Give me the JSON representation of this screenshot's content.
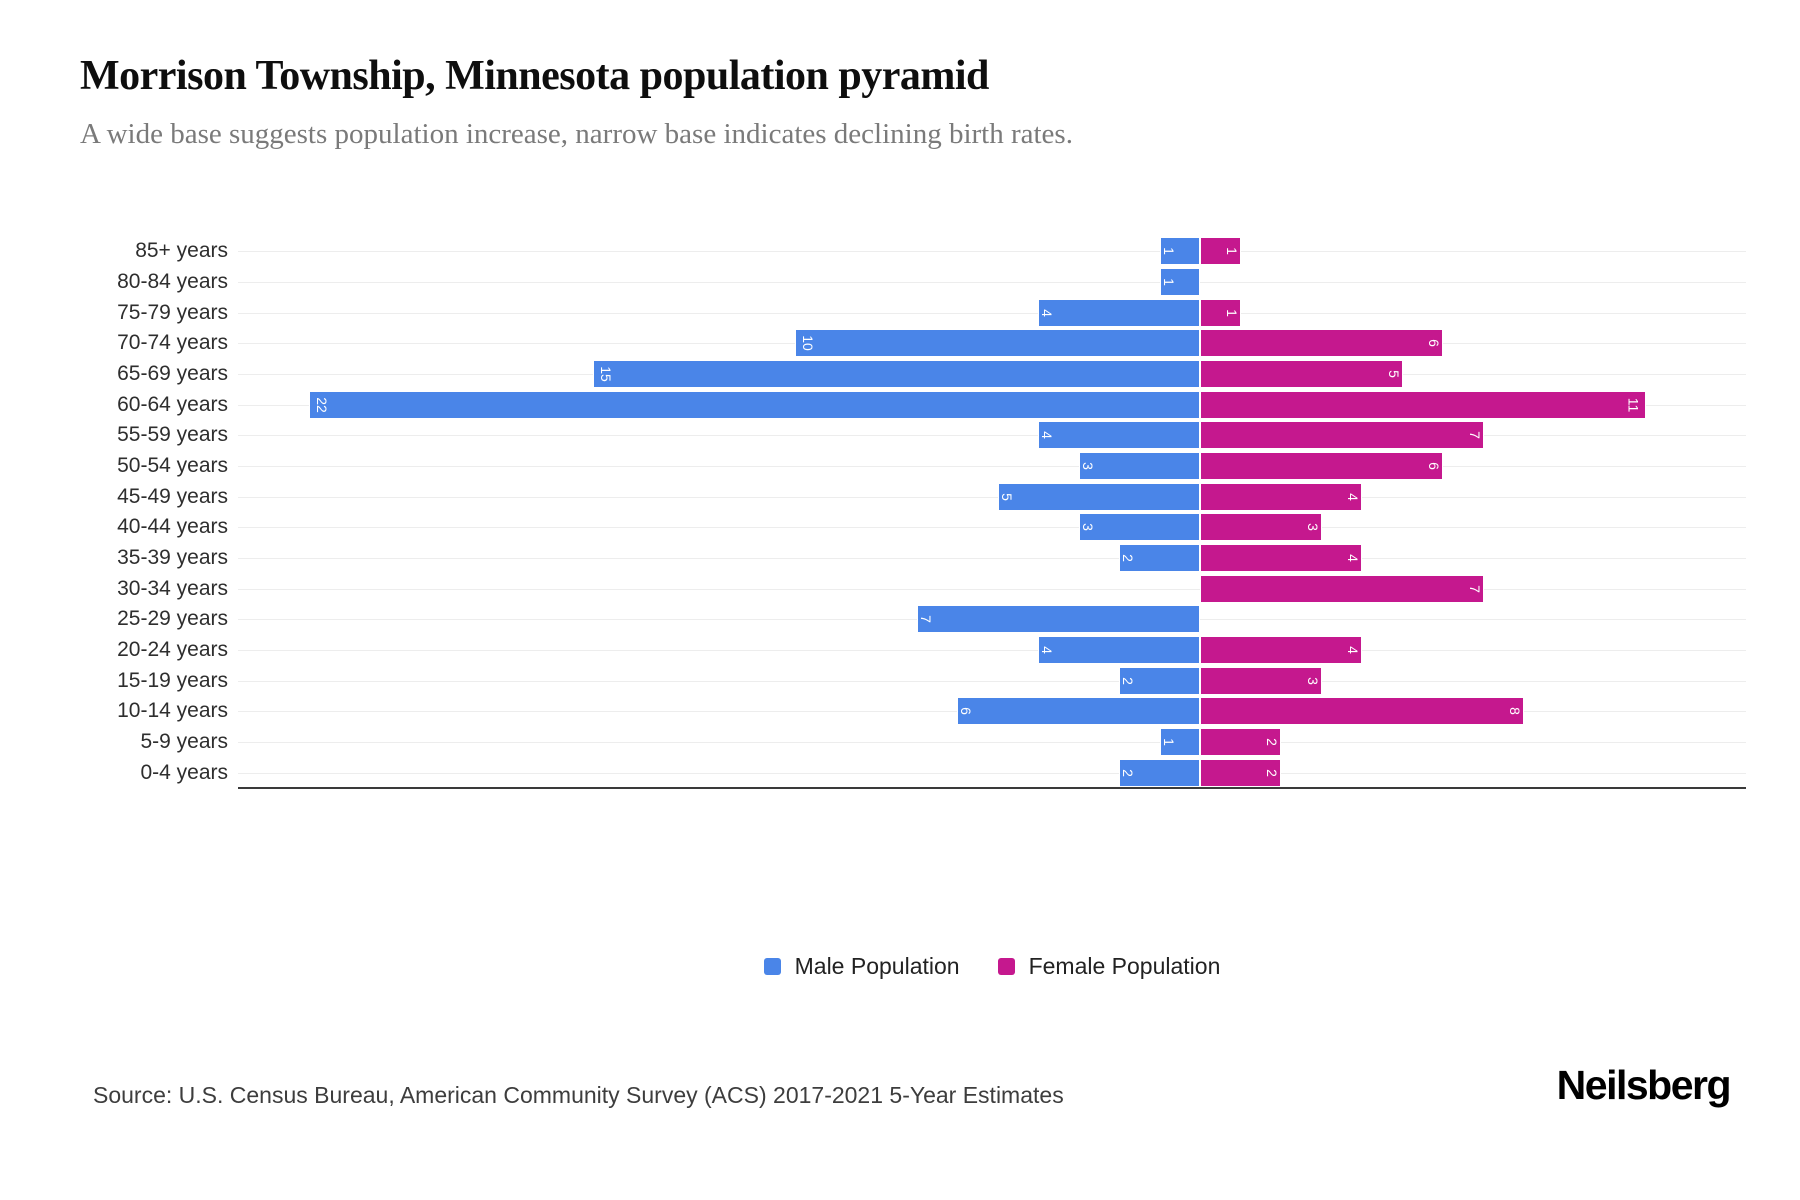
{
  "header": {
    "title": "Morrison Township, Minnesota population pyramid",
    "subtitle": "A wide base suggests population increase, narrow base indicates declining birth rates."
  },
  "legend": {
    "male": {
      "label": "Male Population",
      "color": "#4a85e8"
    },
    "female": {
      "label": "Female Population",
      "color": "#c5188e"
    }
  },
  "footer": {
    "source": "Source: U.S. Census Bureau, American Community Survey (ACS) 2017-2021 5-Year Estimates",
    "brand": "Neilsberg"
  },
  "chart_data": {
    "type": "bar",
    "variant": "population-pyramid",
    "orientation": "horizontal",
    "title": "Morrison Township, Minnesota population pyramid",
    "categories": [
      "85+ years",
      "80-84 years",
      "75-79 years",
      "70-74 years",
      "65-69 years",
      "60-64 years",
      "55-59 years",
      "50-54 years",
      "45-49 years",
      "40-44 years",
      "35-39 years",
      "30-34 years",
      "25-29 years",
      "20-24 years",
      "15-19 years",
      "10-14 years",
      "5-9 years",
      "0-4 years"
    ],
    "series": [
      {
        "name": "Male Population",
        "side": "left",
        "color": "#4a85e8",
        "values": [
          1,
          1,
          4,
          10,
          15,
          22,
          4,
          3,
          5,
          3,
          2,
          0,
          7,
          4,
          2,
          6,
          1,
          2
        ]
      },
      {
        "name": "Female Population",
        "side": "right",
        "color": "#c5188e",
        "values": [
          1,
          0,
          1,
          6,
          5,
          11,
          7,
          6,
          4,
          3,
          4,
          7,
          0,
          4,
          3,
          8,
          2,
          2
        ]
      }
    ],
    "value_labels": "inside-bar-end, rotated 90deg, white",
    "grid": "horizontal light gray lines per category",
    "legend_position": "bottom-center",
    "xlim": [
      -23.7,
      13.5
    ]
  }
}
